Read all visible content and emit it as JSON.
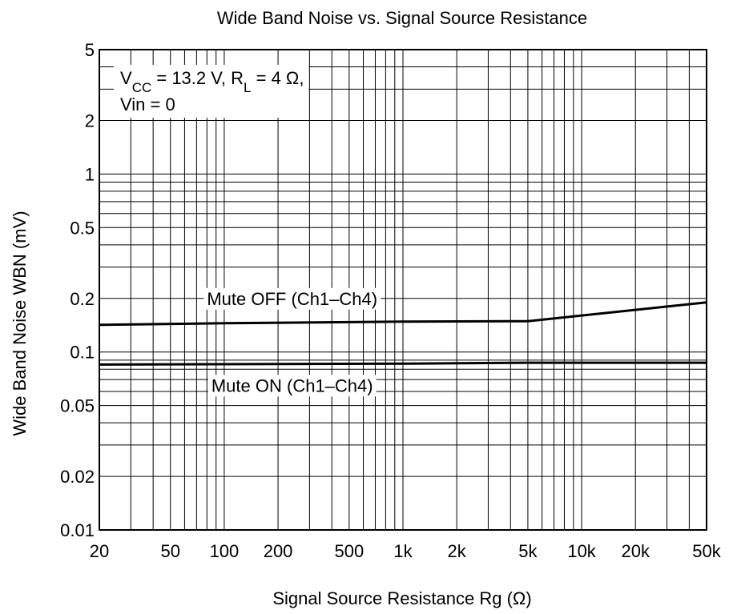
{
  "chart_data": {
    "type": "line",
    "title": "Wide Band Noise vs. Signal Source Resistance",
    "xlabel": "Signal Source Resistance  Rg  (Ω)",
    "ylabel": "Wide Band Noise  WBN  (mV)",
    "xscale": "log",
    "yscale": "log",
    "xlim": [
      20,
      50000
    ],
    "ylim": [
      0.01,
      5
    ],
    "grid": true,
    "x_ticks": [
      {
        "value": 20,
        "label": "20"
      },
      {
        "value": 50,
        "label": "50"
      },
      {
        "value": 100,
        "label": "100"
      },
      {
        "value": 200,
        "label": "200"
      },
      {
        "value": 500,
        "label": "500"
      },
      {
        "value": 1000,
        "label": "1k"
      },
      {
        "value": 2000,
        "label": "2k"
      },
      {
        "value": 5000,
        "label": "5k"
      },
      {
        "value": 10000,
        "label": "10k"
      },
      {
        "value": 20000,
        "label": "20k"
      },
      {
        "value": 50000,
        "label": "50k"
      }
    ],
    "y_ticks": [
      {
        "value": 0.01,
        "label": "0.01"
      },
      {
        "value": 0.02,
        "label": "0.02"
      },
      {
        "value": 0.05,
        "label": "0.05"
      },
      {
        "value": 0.1,
        "label": "0.1"
      },
      {
        "value": 0.2,
        "label": "0.2"
      },
      {
        "value": 0.5,
        "label": "0.5"
      },
      {
        "value": 1,
        "label": "1"
      },
      {
        "value": 2,
        "label": "2"
      },
      {
        "value": 5,
        "label": "5"
      }
    ],
    "conditions": {
      "line1_parts": [
        {
          "text": "V",
          "sub": false
        },
        {
          "text": "CC",
          "sub": true
        },
        {
          "text": " = 13.2 V, R",
          "sub": false
        },
        {
          "text": "L",
          "sub": true
        },
        {
          "text": " = 4 Ω,",
          "sub": false
        }
      ],
      "line2": "Vin = 0"
    },
    "series": [
      {
        "name": "Mute OFF (Ch1–Ch4)",
        "points": [
          [
            20,
            0.142
          ],
          [
            100,
            0.145
          ],
          [
            1000,
            0.148
          ],
          [
            5000,
            0.149
          ],
          [
            50000,
            0.19
          ]
        ]
      },
      {
        "name": "Mute ON (Ch1–Ch4)",
        "points": [
          [
            20,
            0.085
          ],
          [
            1000,
            0.086
          ],
          [
            5000,
            0.087
          ],
          [
            50000,
            0.087
          ]
        ]
      }
    ]
  }
}
